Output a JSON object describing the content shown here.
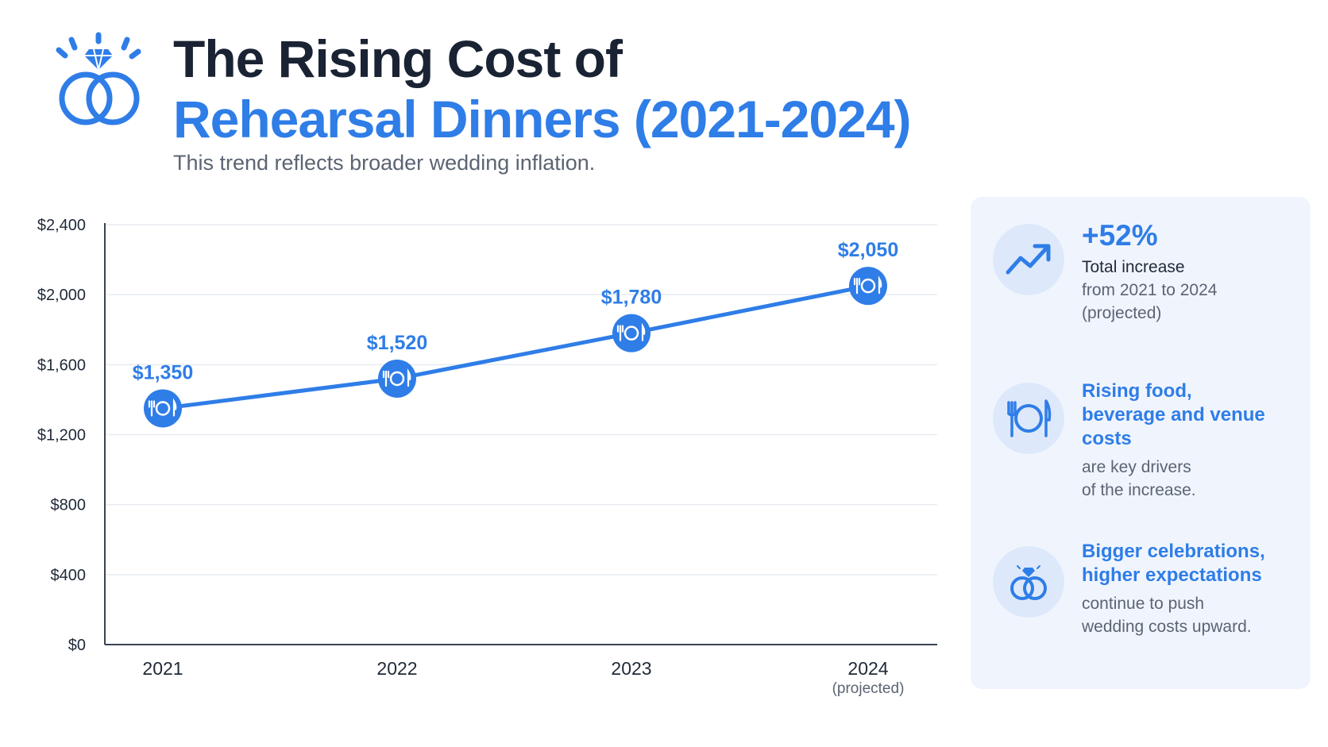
{
  "header": {
    "title_line1": "The Rising Cost of",
    "title_line2": "Rehearsal Dinners (2021-2024)",
    "subtitle": "This trend reflects broader wedding inflation."
  },
  "colors": {
    "accent": "#2f7de7",
    "dark": "#1a2333",
    "muted": "#5b6473",
    "panel": "#f0f5fd"
  },
  "chart_data": {
    "type": "line",
    "categories": [
      "2021",
      "2022",
      "2023",
      "2024"
    ],
    "category_notes": [
      "",
      "",
      "",
      "(projected)"
    ],
    "values": [
      1350,
      1520,
      1780,
      2050
    ],
    "value_labels": [
      "$1,350",
      "$1,520",
      "$1,780",
      "$2,050"
    ],
    "yticks": [
      0,
      400,
      800,
      1200,
      1600,
      2000,
      2400
    ],
    "ytick_labels": [
      "$0",
      "$400",
      "$800",
      "$1,200",
      "$1,600",
      "$2,000",
      "$2,400"
    ],
    "ylim": [
      0,
      2400
    ],
    "grid": true,
    "marker_icon": "plate-cutlery-icon"
  },
  "sidebar": {
    "stat1": {
      "icon": "trend-up-icon",
      "value": "+52%",
      "label": "Total increase",
      "desc": "from 2021 to 2024\n(projected)"
    },
    "stat2": {
      "icon": "plate-cutlery-icon",
      "heading": "Rising food,\nbeverage and venue\ncosts",
      "desc": "are key drivers\nof the increase."
    },
    "stat3": {
      "icon": "wedding-rings-icon",
      "heading": "Bigger celebrations,\nhigher expectations",
      "desc": "continue to push\nwedding costs upward."
    }
  }
}
